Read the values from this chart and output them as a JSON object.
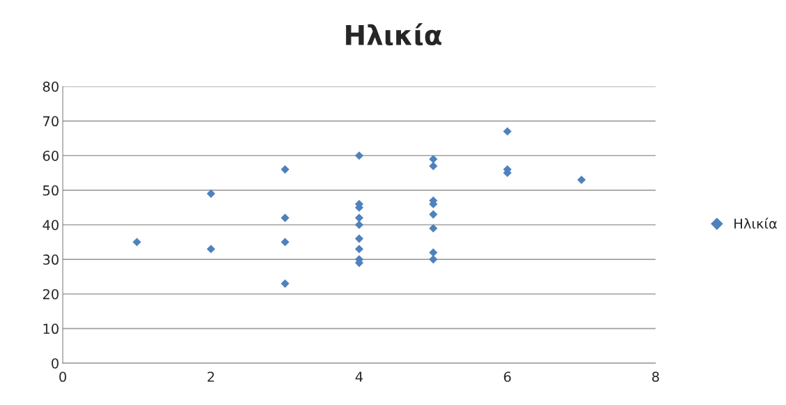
{
  "chart_data": {
    "type": "scatter",
    "title": "Ηλικία",
    "series": [
      {
        "name": "Ηλικία",
        "color": "#4f81bd",
        "x": [
          1,
          2,
          2,
          3,
          3,
          3,
          3,
          4,
          4,
          4,
          4,
          4,
          4,
          4,
          4,
          4,
          5,
          5,
          5,
          5,
          5,
          5,
          5,
          5,
          6,
          6,
          6,
          7
        ],
        "values": [
          35,
          49,
          33,
          56,
          42,
          35,
          23,
          60,
          46,
          45,
          42,
          40,
          36,
          33,
          30,
          29,
          59,
          57,
          47,
          46,
          43,
          39,
          32,
          30,
          67,
          56,
          55,
          53
        ]
      }
    ],
    "xlim": [
      0,
      8
    ],
    "xticks": [
      0,
      2,
      4,
      6,
      8
    ],
    "ylim": [
      0,
      80
    ],
    "yticks": [
      0,
      10,
      20,
      30,
      40,
      50,
      60,
      70,
      80
    ],
    "grid": "y",
    "legend": "right",
    "marker": "diamond"
  }
}
